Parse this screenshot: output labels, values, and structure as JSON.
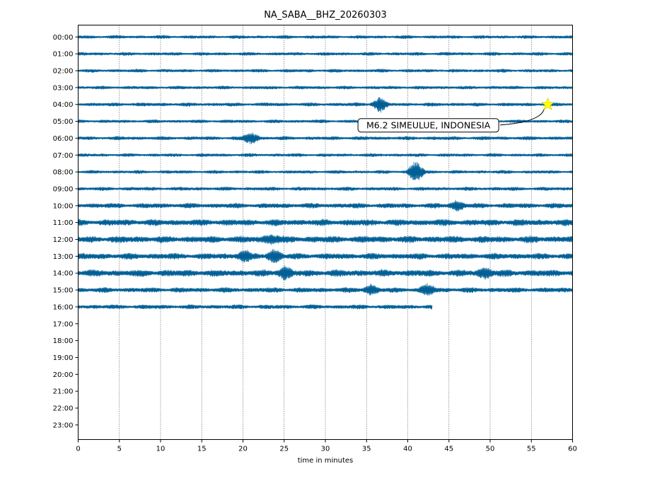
{
  "chart_data": {
    "type": "line",
    "title": "NA_SABA__BHZ_20260303",
    "xlabel": "time in minutes",
    "ylabel": "",
    "xlim": [
      0,
      60
    ],
    "x_ticks": [
      0,
      5,
      10,
      15,
      20,
      25,
      30,
      35,
      40,
      45,
      50,
      55,
      60
    ],
    "x_tick_labels": [
      "0",
      "5",
      "10",
      "15",
      "20",
      "25",
      "30",
      "35",
      "40",
      "45",
      "50",
      "55",
      "60"
    ],
    "y_tick_labels": [
      "00:00",
      "01:00",
      "02:00",
      "03:00",
      "04:00",
      "05:00",
      "06:00",
      "07:00",
      "08:00",
      "09:00",
      "10:00",
      "11:00",
      "12:00",
      "13:00",
      "14:00",
      "15:00",
      "16:00",
      "17:00",
      "18:00",
      "19:00",
      "20:00",
      "21:00",
      "22:00",
      "23:00"
    ],
    "trace_color": "#005f96",
    "vertical_grid": "dotted",
    "trace_end_minutes": [
      60,
      60,
      60,
      60,
      60,
      60,
      60,
      60,
      60,
      60,
      60,
      60,
      60,
      60,
      60,
      60,
      43
    ],
    "noise_level": [
      0.5,
      0.5,
      0.5,
      0.5,
      0.55,
      0.5,
      0.55,
      0.5,
      0.5,
      0.55,
      0.75,
      0.95,
      1.0,
      0.9,
      1.0,
      0.75,
      0.65
    ],
    "bursts": [
      {
        "row": 4,
        "minute": 36.5,
        "amplitude": 2.2
      },
      {
        "row": 6,
        "minute": 21.0,
        "amplitude": 1.8
      },
      {
        "row": 8,
        "minute": 41.0,
        "amplitude": 3.2
      },
      {
        "row": 10,
        "minute": 46.0,
        "amplitude": 1.4
      },
      {
        "row": 12,
        "minute": 23.5,
        "amplitude": 1.6
      },
      {
        "row": 13,
        "minute": 23.8,
        "amplitude": 2.0
      },
      {
        "row": 13,
        "minute": 20.0,
        "amplitude": 1.6
      },
      {
        "row": 14,
        "minute": 25.0,
        "amplitude": 1.8
      },
      {
        "row": 14,
        "minute": 49.5,
        "amplitude": 1.6
      },
      {
        "row": 15,
        "minute": 35.5,
        "amplitude": 1.5
      },
      {
        "row": 15,
        "minute": 42.5,
        "amplitude": 1.4
      }
    ],
    "event_marker": {
      "label": "M6.2 SIMEULUE, INDONESIA",
      "minute": 57.0,
      "hour_row": 4,
      "color": "#ffff00"
    }
  }
}
